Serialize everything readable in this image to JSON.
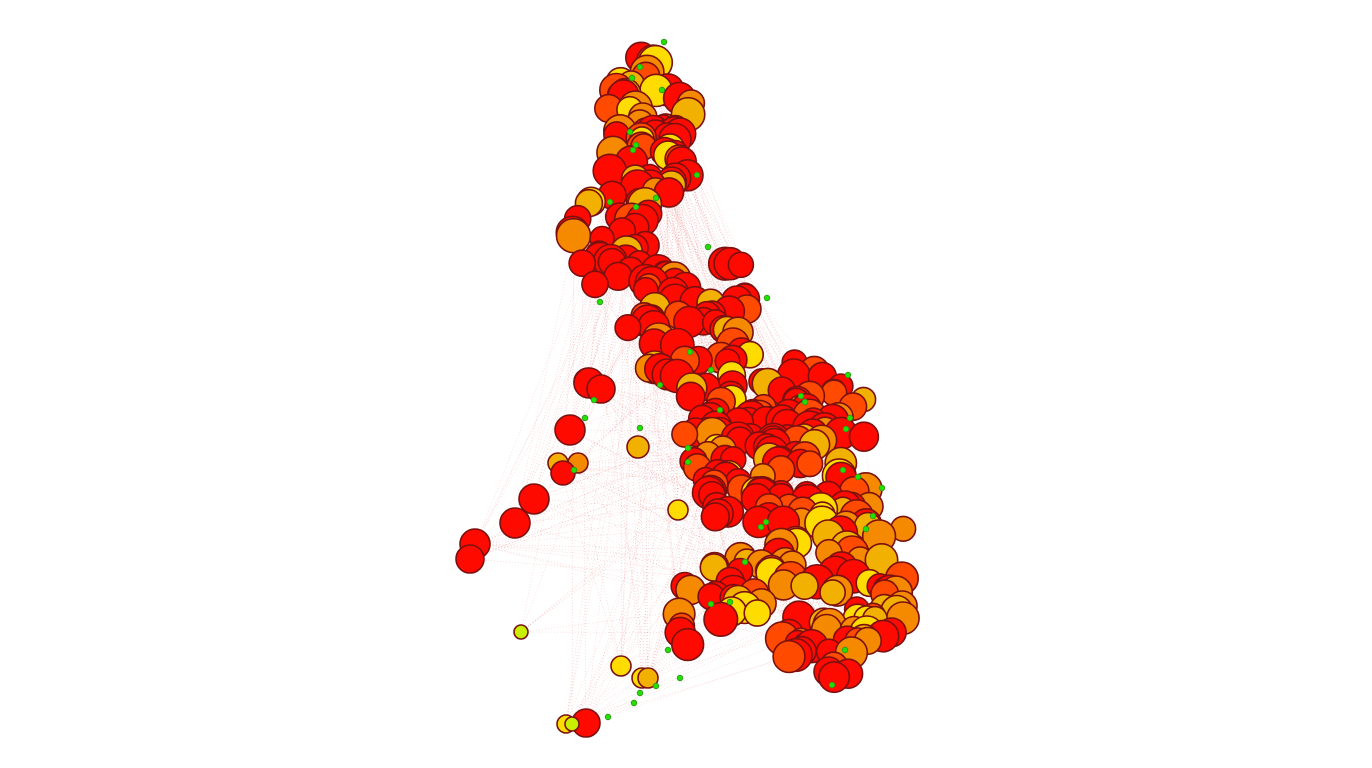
{
  "view": {
    "background": "#ffffff",
    "description_visible_text": ""
  },
  "colors": {
    "red": "#ff0a00",
    "red_orange": "#ff4a00",
    "orange": "#f58a00",
    "amber": "#f2b000",
    "yellow": "#ffdc00",
    "yellow_green": "#c8ee00",
    "green": "#22e000",
    "edge": "#e23a3a",
    "node_stroke": "#7a1010"
  },
  "legend": []
}
